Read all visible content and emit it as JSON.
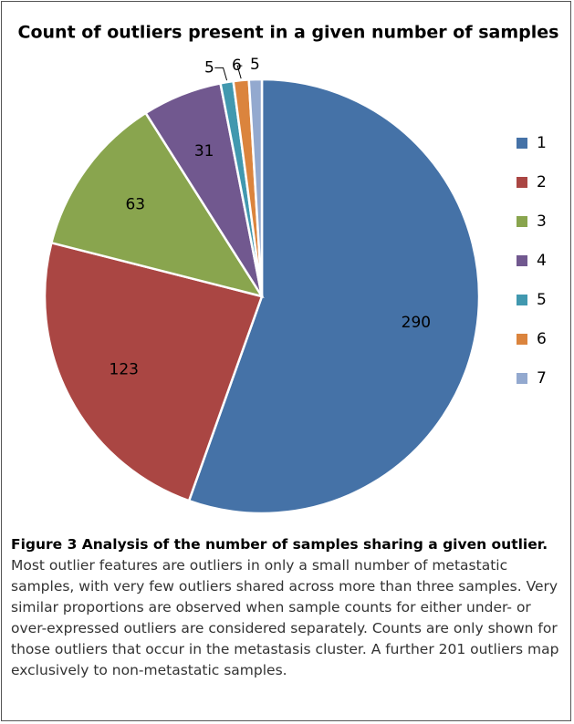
{
  "chart_data": {
    "type": "pie",
    "title": "Count of outliers present in a given number of samples",
    "categories": [
      "1",
      "2",
      "3",
      "4",
      "5",
      "6",
      "7"
    ],
    "values": [
      290,
      123,
      63,
      31,
      5,
      6,
      5
    ],
    "colors": [
      "#4572a7",
      "#aa4643",
      "#89a54e",
      "#71588f",
      "#4198af",
      "#db843d",
      "#93a9cf"
    ],
    "legend": "right"
  },
  "caption": {
    "label": "Figure 3 Analysis of the number of samples sharing a given outlier.",
    "text": "Most outlier features are outliers in only a small number of metastatic samples, with very few outliers shared across more than three samples. Very similar proportions are observed when sample counts for either under- or over-expressed outliers are considered separately. Counts are only shown for those outliers that occur in the metastasis cluster. A further 201 outliers map exclusively to non-metastatic samples."
  }
}
